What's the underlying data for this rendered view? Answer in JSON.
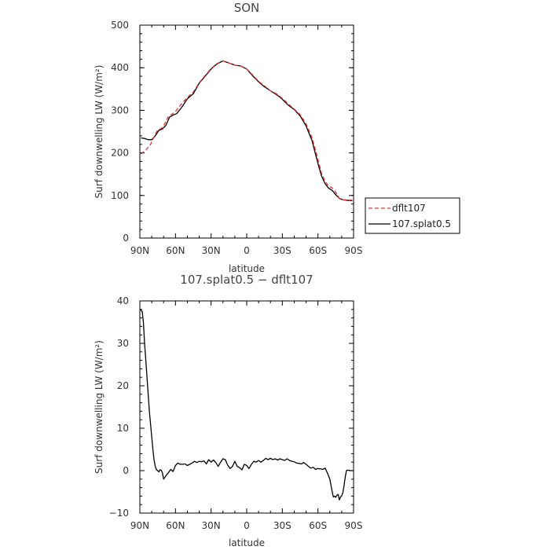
{
  "chart_data": [
    {
      "type": "line",
      "title": "SON",
      "xlabel": "latitude",
      "ylabel": "Surf downwelling LW (W/m²)",
      "xlim": [
        90,
        -90
      ],
      "ylim": [
        0,
        500
      ],
      "x_ticks": [
        90,
        60,
        30,
        0,
        -30,
        -60,
        -90
      ],
      "x_tick_labels": [
        "90N",
        "60N",
        "30N",
        "0",
        "30S",
        "60S",
        "90S"
      ],
      "y_ticks": [
        0,
        100,
        200,
        300,
        400,
        500
      ],
      "y_tick_labels": [
        "0",
        "100",
        "200",
        "300",
        "400",
        "500"
      ],
      "grid": false,
      "legend": "right",
      "series": [
        {
          "name": "dflt107",
          "color": "#e03030",
          "style": "dashed",
          "x": [
            89,
            85,
            81,
            78,
            75,
            72,
            69,
            66,
            63,
            60,
            55,
            50,
            45,
            40,
            35,
            30,
            25,
            20,
            15,
            10,
            5,
            0,
            -5,
            -10,
            -15,
            -20,
            -25,
            -30,
            -35,
            -40,
            -45,
            -50,
            -55,
            -60,
            -63,
            -66,
            -69,
            -72,
            -75,
            -78,
            -81,
            -84,
            -87,
            -89
          ],
          "y": [
            197,
            207,
            220,
            238,
            254,
            257,
            268,
            286,
            291,
            297,
            315,
            330,
            343,
            365,
            382,
            398,
            410,
            416,
            411,
            406,
            404,
            397,
            383,
            368,
            357,
            346,
            339,
            328,
            315,
            303,
            290,
            268,
            236,
            185,
            152,
            134,
            121,
            118,
            108,
            93,
            90,
            89,
            89,
            89
          ]
        },
        {
          "name": "107.splat0.5",
          "color": "#000000",
          "style": "solid",
          "x": [
            89,
            86,
            83,
            80,
            77,
            74,
            71,
            68,
            65,
            62,
            59,
            55,
            50,
            45,
            40,
            35,
            30,
            25,
            20,
            15,
            10,
            5,
            0,
            -5,
            -10,
            -15,
            -20,
            -25,
            -30,
            -35,
            -40,
            -45,
            -50,
            -55,
            -60,
            -63,
            -66,
            -69,
            -72,
            -75,
            -78,
            -81,
            -84,
            -87,
            -89
          ],
          "y": [
            235,
            234,
            231,
            231,
            240,
            253,
            256,
            265,
            284,
            289,
            292,
            306,
            327,
            339,
            364,
            380,
            397,
            409,
            416,
            411,
            406,
            404,
            397,
            381,
            367,
            355,
            346,
            337,
            326,
            312,
            302,
            287,
            263,
            229,
            175,
            146,
            128,
            117,
            112,
            102,
            93,
            90,
            89,
            88,
            88
          ]
        }
      ]
    },
    {
      "type": "line",
      "title": "107.splat0.5 − dflt107",
      "xlabel": "latitude",
      "ylabel": "Surf downwelling LW (W/m²)",
      "xlim": [
        90,
        -90
      ],
      "ylim": [
        -10,
        40
      ],
      "x_ticks": [
        90,
        60,
        30,
        0,
        -30,
        -60,
        -90
      ],
      "x_tick_labels": [
        "90N",
        "60N",
        "30N",
        "0",
        "30S",
        "60S",
        "90S"
      ],
      "y_ticks": [
        -10,
        0,
        10,
        20,
        30,
        40
      ],
      "y_tick_labels": [
        "−10",
        "0",
        "10",
        "20",
        "30",
        "40"
      ],
      "grid": false,
      "series": [
        {
          "color": "#000000",
          "style": "solid",
          "x": [
            89.5,
            88,
            87,
            86,
            85,
            84,
            83,
            82,
            81,
            80,
            79,
            78,
            77,
            76,
            75,
            74,
            73,
            72,
            71,
            70,
            68,
            66,
            64,
            62,
            60,
            58,
            56,
            54,
            52,
            50,
            48,
            46,
            44,
            42,
            40,
            38,
            36,
            34,
            32,
            30,
            28,
            26,
            24,
            22,
            20,
            18,
            16,
            14,
            12,
            10,
            8,
            6,
            4,
            2,
            0,
            -2,
            -4,
            -6,
            -8,
            -10,
            -12,
            -14,
            -16,
            -18,
            -20,
            -22,
            -24,
            -26,
            -28,
            -30,
            -32,
            -34,
            -36,
            -38,
            -40,
            -42,
            -44,
            -46,
            -48,
            -50,
            -52,
            -54,
            -56,
            -58,
            -60,
            -62,
            -64,
            -66,
            -68,
            -70,
            -71,
            -72,
            -73,
            -74,
            -75,
            -76,
            -77,
            -78,
            -79,
            -80,
            -81,
            -82,
            -83,
            -84,
            -85,
            -86,
            -87,
            -88,
            -89.5
          ],
          "y": [
            37.9,
            37.5,
            35,
            30,
            26,
            22,
            18,
            14,
            11,
            8,
            5,
            2.5,
            1,
            0.2,
            0,
            -0.3,
            0.2,
            0.1,
            -0.5,
            -2.0,
            -1.2,
            -0.5,
            0.3,
            -0.2,
            1.2,
            1.8,
            1.5,
            1.5,
            1.6,
            1.2,
            1.5,
            1.8,
            2.2,
            1.9,
            2.2,
            2.1,
            2.3,
            1.6,
            2.6,
            2.0,
            2.5,
            1.9,
            1.0,
            2.0,
            2.8,
            2.6,
            1.3,
            0.5,
            1.0,
            2.2,
            1.0,
            0.7,
            0.2,
            1.5,
            1.2,
            0.5,
            1.5,
            2.2,
            2.0,
            2.4,
            2.0,
            2.4,
            2.9,
            2.6,
            2.9,
            2.6,
            2.8,
            2.5,
            2.8,
            2.6,
            2.4,
            2.8,
            2.4,
            2.2,
            2.1,
            1.8,
            1.7,
            1.6,
            1.9,
            1.5,
            1.0,
            0.6,
            0.8,
            0.3,
            0.5,
            0.4,
            0.3,
            0.6,
            -0.6,
            -2.0,
            -3.5,
            -5.0,
            -6.2,
            -6.0,
            -6.3,
            -5.8,
            -5.6,
            -6.9,
            -6.2,
            -5.9,
            -5.2,
            -3.5,
            -1.5,
            0,
            0.1,
            0.1,
            0,
            0,
            0
          ]
        }
      ]
    }
  ]
}
